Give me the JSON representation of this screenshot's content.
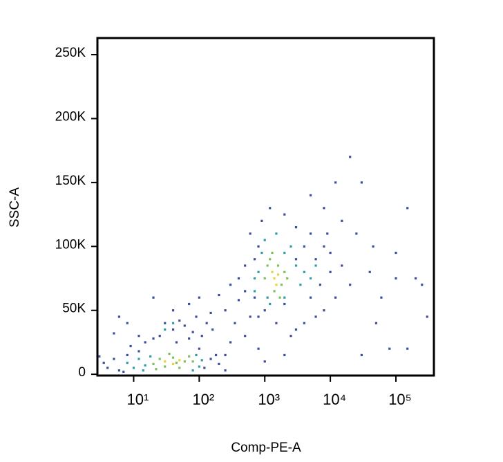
{
  "chart_data": {
    "type": "scatter",
    "x_label": "Comp-PE-A",
    "y_label": "SSC-A",
    "xscale": "log",
    "xlim": [
      2.8,
      380000
    ],
    "ylim": [
      -1000,
      263000
    ],
    "xticks": [
      {
        "value": 10,
        "label": "10¹"
      },
      {
        "value": 100,
        "label": "10²"
      },
      {
        "value": 1000,
        "label": "10³"
      },
      {
        "value": 10000,
        "label": "10⁴"
      },
      {
        "value": 100000,
        "label": "10⁵"
      }
    ],
    "yticks": [
      0,
      {
        "value": 50000,
        "label": "50K"
      },
      {
        "value": 100000,
        "label": "100K"
      },
      {
        "value": 150000,
        "label": "150K"
      },
      {
        "value": 200000,
        "label": "200K"
      },
      {
        "value": 250000,
        "label": "250K"
      }
    ],
    "grid": false,
    "series": [
      {
        "color": "#3d4f9c",
        "x": [
          4,
          5,
          3.5,
          6,
          8,
          12,
          7,
          150,
          120,
          200,
          180,
          250,
          100,
          9,
          15,
          25,
          40,
          60,
          80,
          50,
          30,
          70,
          90,
          110,
          20,
          45,
          130,
          160,
          12,
          8,
          6,
          20,
          5,
          40,
          70,
          100,
          150,
          200,
          300,
          250,
          400,
          350,
          500,
          300,
          600,
          800,
          1000,
          2000,
          500,
          700,
          400,
          600,
          900,
          1200,
          2000,
          3000,
          5000,
          8000,
          10000,
          15000,
          20000,
          12000,
          8000,
          6000,
          4000,
          3000,
          2500,
          1500,
          800,
          700,
          1000,
          5000,
          8000,
          12000,
          20000,
          15000,
          25000,
          30000,
          40000,
          60000,
          100000,
          150000,
          200000,
          300000,
          250000,
          50000,
          30000,
          80000,
          150000,
          100000,
          45000,
          3000,
          4000,
          6000,
          10000,
          7000,
          5000,
          9000,
          2000,
          800,
          500,
          250,
          3
        ],
        "y": [
          5000,
          12000,
          9000,
          3000,
          15000,
          18000,
          2000,
          12000,
          5000,
          8000,
          15000,
          3000,
          20000,
          22000,
          25000,
          30000,
          35000,
          38000,
          33000,
          42000,
          40000,
          28000,
          45000,
          30000,
          28000,
          25000,
          40000,
          35000,
          30000,
          40000,
          45000,
          60000,
          32000,
          50000,
          55000,
          60000,
          48000,
          62000,
          70000,
          50000,
          58000,
          40000,
          30000,
          25000,
          45000,
          20000,
          10000,
          15000,
          85000,
          90000,
          75000,
          110000,
          120000,
          130000,
          125000,
          115000,
          110000,
          100000,
          95000,
          85000,
          70000,
          60000,
          50000,
          45000,
          40000,
          35000,
          30000,
          40000,
          45000,
          60000,
          50000,
          140000,
          130000,
          150000,
          170000,
          120000,
          110000,
          150000,
          80000,
          60000,
          75000,
          130000,
          75000,
          45000,
          70000,
          40000,
          15000,
          20000,
          20000,
          95000,
          100000,
          90000,
          100000,
          90000,
          80000,
          70000,
          60000,
          110000,
          55000,
          100000,
          65000,
          15000,
          14000
        ]
      },
      {
        "color": "#2c9fa6",
        "x": [
          8,
          10,
          12,
          15,
          18,
          100,
          110,
          90,
          80,
          14,
          700,
          800,
          900,
          1000,
          1200,
          2000,
          2500,
          3000,
          3500,
          4000,
          5000,
          1500,
          700,
          2000,
          6000,
          1100,
          40,
          30
        ],
        "y": [
          9000,
          5000,
          12000,
          7000,
          14000,
          6000,
          11000,
          15000,
          3000,
          3000,
          65000,
          80000,
          95000,
          105000,
          55000,
          60000,
          100000,
          85000,
          70000,
          80000,
          75000,
          110000,
          75000,
          95000,
          85000,
          60000,
          40000,
          35000
        ]
      },
      {
        "color": "#7dbf5c",
        "x": [
          20,
          25,
          30,
          40,
          50,
          60,
          70,
          35,
          45,
          80,
          22,
          1000,
          1200,
          1400,
          1600,
          1800,
          2000,
          1300,
          2200,
          1100,
          1700
        ],
        "y": [
          8000,
          12000,
          6000,
          13000,
          5000,
          10000,
          14000,
          16000,
          9000,
          10000,
          4000,
          75000,
          90000,
          65000,
          85000,
          70000,
          80000,
          95000,
          75000,
          85000,
          60000
        ]
      },
      {
        "color": "#e6d43a",
        "x": [
          30,
          40,
          50,
          1400,
          1500,
          1300,
          1600
        ],
        "y": [
          10000,
          8000,
          11000,
          75000,
          70000,
          80000,
          78000
        ]
      }
    ]
  }
}
